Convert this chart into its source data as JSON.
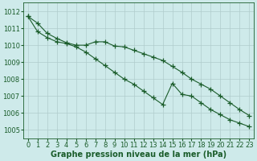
{
  "title": "Graphe pression niveau de la mer (hPa)",
  "x": [
    0,
    1,
    2,
    3,
    4,
    5,
    6,
    7,
    8,
    9,
    10,
    11,
    12,
    13,
    14,
    15,
    16,
    17,
    18,
    19,
    20,
    21,
    22,
    23
  ],
  "line1": [
    1011.7,
    1011.3,
    1010.7,
    1010.4,
    1010.15,
    1010.0,
    1010.0,
    1010.2,
    1010.2,
    1009.95,
    1009.9,
    1009.7,
    1009.5,
    1009.3,
    1009.1,
    1008.75,
    1008.4,
    1008.0,
    1007.7,
    1007.4,
    1007.0,
    1006.6,
    1006.2,
    1005.85
  ],
  "line2": [
    1011.7,
    1010.8,
    1010.45,
    1010.2,
    1010.1,
    1009.9,
    1009.6,
    1009.2,
    1008.8,
    1008.4,
    1008.0,
    1007.7,
    1007.3,
    1006.9,
    1006.5,
    1007.75,
    1007.1,
    1007.0,
    1006.6,
    1006.2,
    1005.9,
    1005.6,
    1005.4,
    1005.2
  ],
  "ylim": [
    1004.5,
    1012.5
  ],
  "yticks": [
    1005,
    1006,
    1007,
    1008,
    1009,
    1010,
    1011,
    1012
  ],
  "bg_color": "#ceeaea",
  "grid_color": "#b0cccc",
  "line_color": "#1a5c2a",
  "marker": "+",
  "markersize": 4,
  "linewidth": 0.8,
  "xlabel_fontsize": 7.0,
  "tick_fontsize": 6.0,
  "fig_width": 3.2,
  "fig_height": 2.0,
  "dpi": 100
}
